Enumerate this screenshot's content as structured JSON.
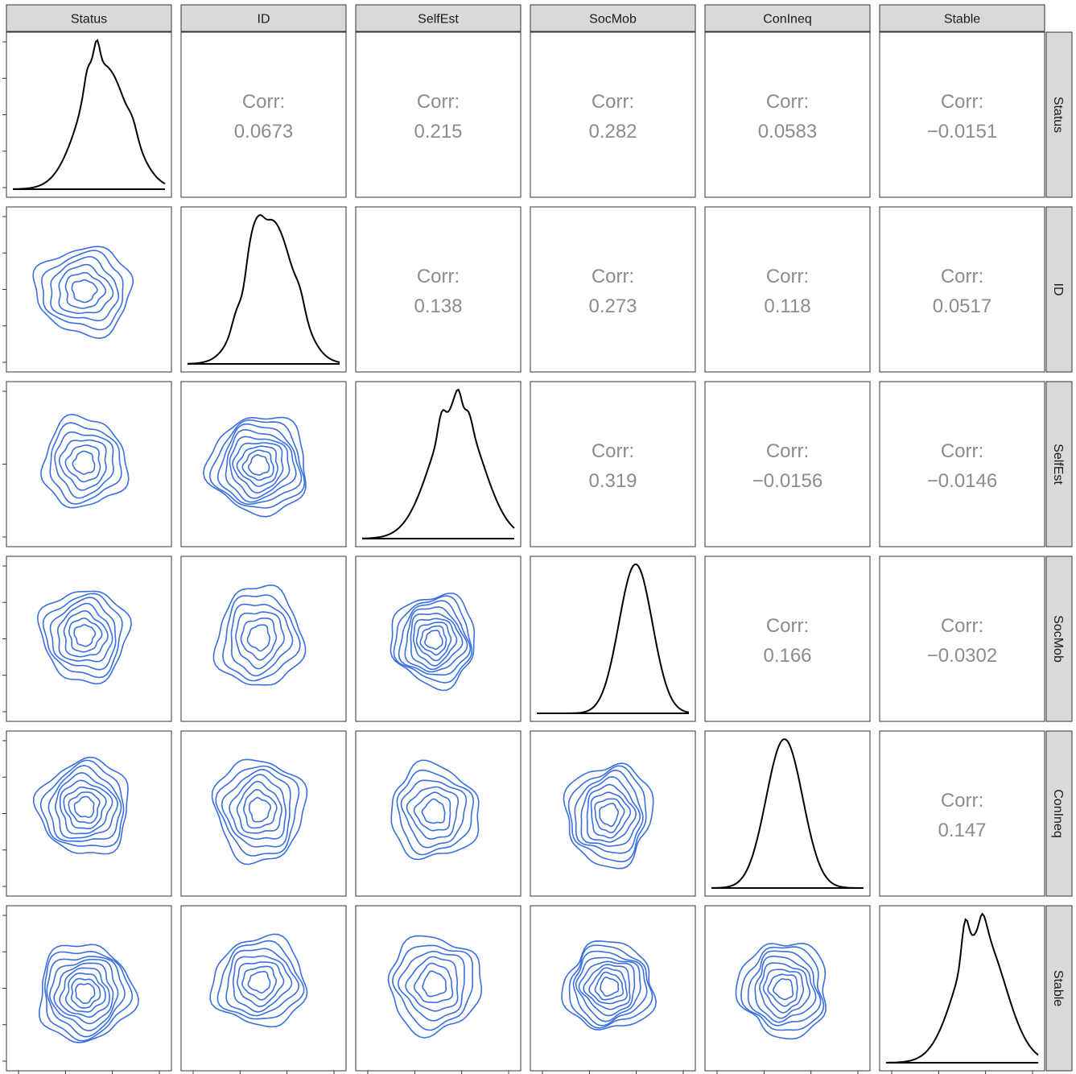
{
  "chart_data": {
    "type": "pairs",
    "variables": [
      "Status",
      "ID",
      "SelfEst",
      "SocMob",
      "ConIneq",
      "Stable"
    ],
    "corr_label": "Corr:",
    "correlations": [
      {
        "row": "ID",
        "col": "Status",
        "value": "0.0673"
      },
      {
        "row": "SelfEst",
        "col": "Status",
        "value": "0.215"
      },
      {
        "row": "SocMob",
        "col": "Status",
        "value": "0.282"
      },
      {
        "row": "ConIneq",
        "col": "Status",
        "value": "0.0583"
      },
      {
        "row": "Stable",
        "col": "Status",
        "value": "−0.0151"
      },
      {
        "row": "SelfEst",
        "col": "ID",
        "value": "0.138"
      },
      {
        "row": "SocMob",
        "col": "ID",
        "value": "0.273"
      },
      {
        "row": "ConIneq",
        "col": "ID",
        "value": "0.118"
      },
      {
        "row": "Stable",
        "col": "ID",
        "value": "0.0517"
      },
      {
        "row": "SocMob",
        "col": "SelfEst",
        "value": "0.319"
      },
      {
        "row": "ConIneq",
        "col": "SelfEst",
        "value": "−0.0156"
      },
      {
        "row": "Stable",
        "col": "SelfEst",
        "value": "−0.0146"
      },
      {
        "row": "ConIneq",
        "col": "SocMob",
        "value": "0.166"
      },
      {
        "row": "Stable",
        "col": "SocMob",
        "value": "−0.0302"
      },
      {
        "row": "Stable",
        "col": "ConIneq",
        "value": "0.147"
      }
    ],
    "upper_matrix": [
      [
        null,
        "0.0673",
        "0.215",
        "0.282",
        "0.0583",
        "−0.0151"
      ],
      [
        null,
        null,
        "0.138",
        "0.273",
        "0.118",
        "0.0517"
      ],
      [
        null,
        null,
        null,
        "0.319",
        "−0.0156",
        "−0.0146"
      ],
      [
        null,
        null,
        null,
        null,
        "0.166",
        "−0.0302"
      ],
      [
        null,
        null,
        null,
        null,
        null,
        "0.147"
      ],
      [
        null,
        null,
        null,
        null,
        null,
        null
      ]
    ],
    "diagonal": "density",
    "lower": "2d density contours",
    "colors": {
      "contour": "#3a6fe0",
      "density": "#000000",
      "corr_text": "#8c8c8c",
      "strip_bg": "#d9d9d9"
    }
  }
}
